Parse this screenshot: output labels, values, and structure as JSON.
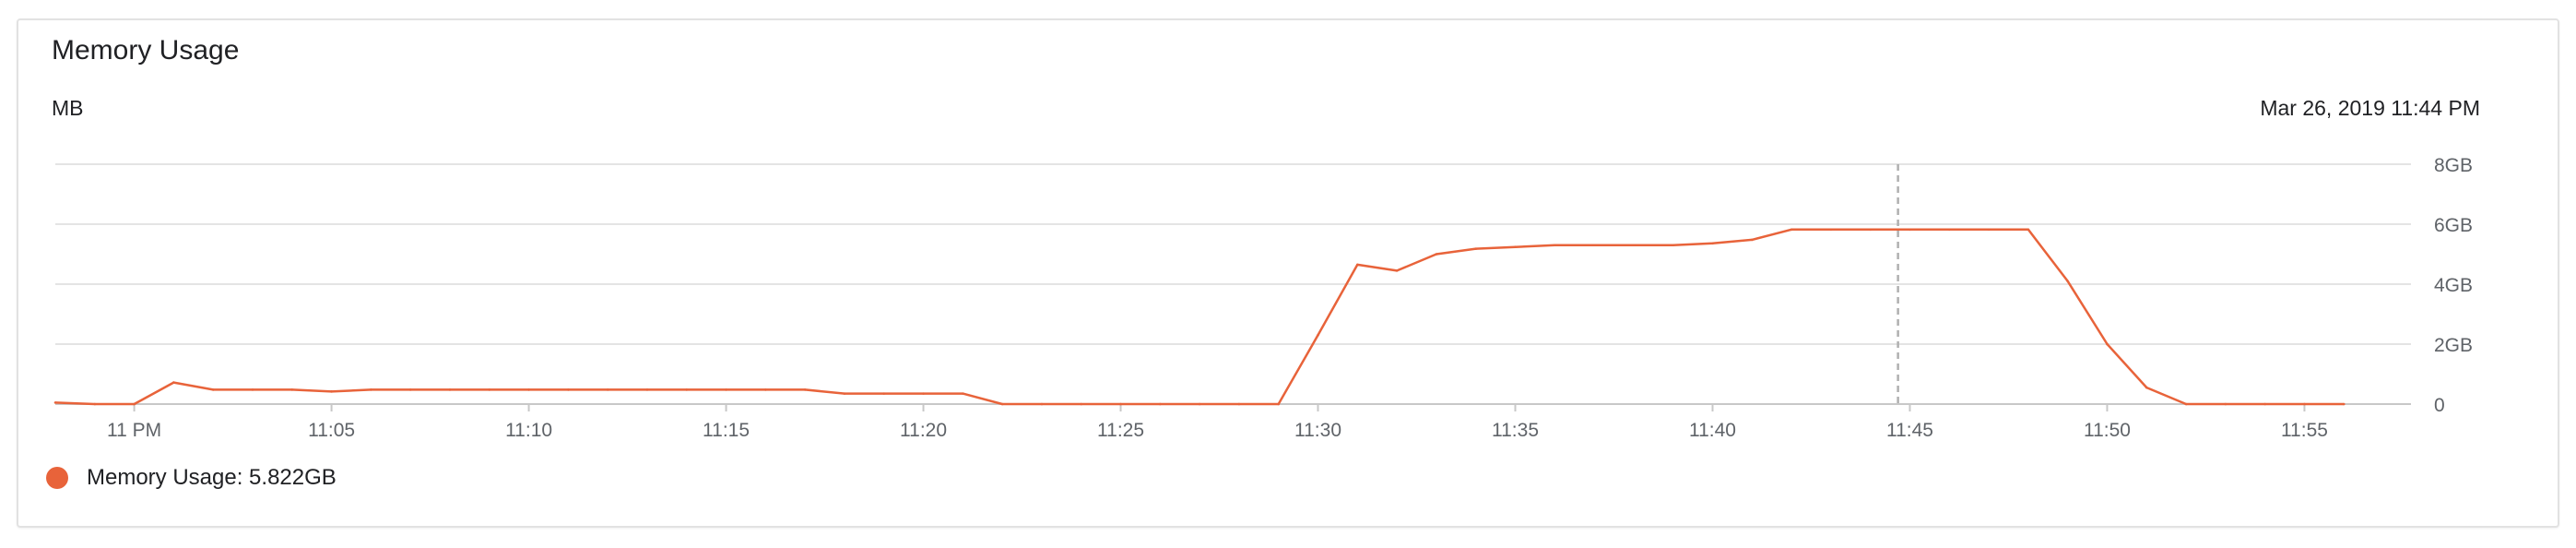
{
  "card": {
    "title": "Memory Usage",
    "unit_label": "MB",
    "timestamp": "Mar 26, 2019 11:44 PM"
  },
  "legend": {
    "text": "Memory Usage: 5.822GB",
    "color": "#e8633a"
  },
  "chart_data": {
    "type": "line",
    "title": "Memory Usage",
    "ylabel": "MB",
    "xlabel": "",
    "xlim": [
      -2,
      57.7
    ],
    "ylim": [
      0,
      8
    ],
    "y_ticks": [
      {
        "value": 0,
        "label": "0"
      },
      {
        "value": 2,
        "label": "2GB"
      },
      {
        "value": 4,
        "label": "4GB"
      },
      {
        "value": 6,
        "label": "6GB"
      },
      {
        "value": 8,
        "label": "8GB"
      }
    ],
    "x_ticks": [
      {
        "value": 0,
        "label": "11 PM"
      },
      {
        "value": 5,
        "label": "11:05"
      },
      {
        "value": 10,
        "label": "11:10"
      },
      {
        "value": 15,
        "label": "11:15"
      },
      {
        "value": 20,
        "label": "11:20"
      },
      {
        "value": 25,
        "label": "11:25"
      },
      {
        "value": 30,
        "label": "11:30"
      },
      {
        "value": 35,
        "label": "11:35"
      },
      {
        "value": 40,
        "label": "11:40"
      },
      {
        "value": 45,
        "label": "11:45"
      },
      {
        "value": 50,
        "label": "11:50"
      },
      {
        "value": 55,
        "label": "11:55"
      }
    ],
    "cursor_x": 44.7,
    "grid": true,
    "legend_position": "bottom-left",
    "series": [
      {
        "name": "Memory Usage",
        "color": "#e8633a",
        "unit": "GB",
        "x": [
          -2,
          -1,
          0,
          1,
          2,
          3,
          4,
          5,
          6,
          7,
          8,
          9,
          10,
          11,
          12,
          13,
          14,
          15,
          16,
          17,
          18,
          19,
          20,
          21,
          22,
          23,
          24,
          25,
          26,
          27,
          28,
          29,
          30,
          31,
          32,
          33,
          34,
          35,
          36,
          37,
          38,
          39,
          40,
          41,
          42,
          43,
          44,
          45,
          46,
          47,
          48,
          49,
          50,
          51,
          52,
          53,
          54,
          55,
          56
        ],
        "values": [
          0.05,
          0,
          0,
          0.72,
          0.48,
          0.48,
          0.48,
          0.42,
          0.48,
          0.48,
          0.48,
          0.48,
          0.48,
          0.48,
          0.48,
          0.48,
          0.48,
          0.48,
          0.48,
          0.48,
          0.35,
          0.35,
          0.35,
          0.35,
          0,
          0,
          0,
          0,
          0,
          0,
          0,
          0,
          2.3,
          4.65,
          4.45,
          5.0,
          5.18,
          5.24,
          5.3,
          5.3,
          5.3,
          5.3,
          5.36,
          5.48,
          5.82,
          5.82,
          5.82,
          5.82,
          5.82,
          5.82,
          5.82,
          4.1,
          2.0,
          0.55,
          0,
          0,
          0,
          0,
          0
        ]
      }
    ]
  }
}
